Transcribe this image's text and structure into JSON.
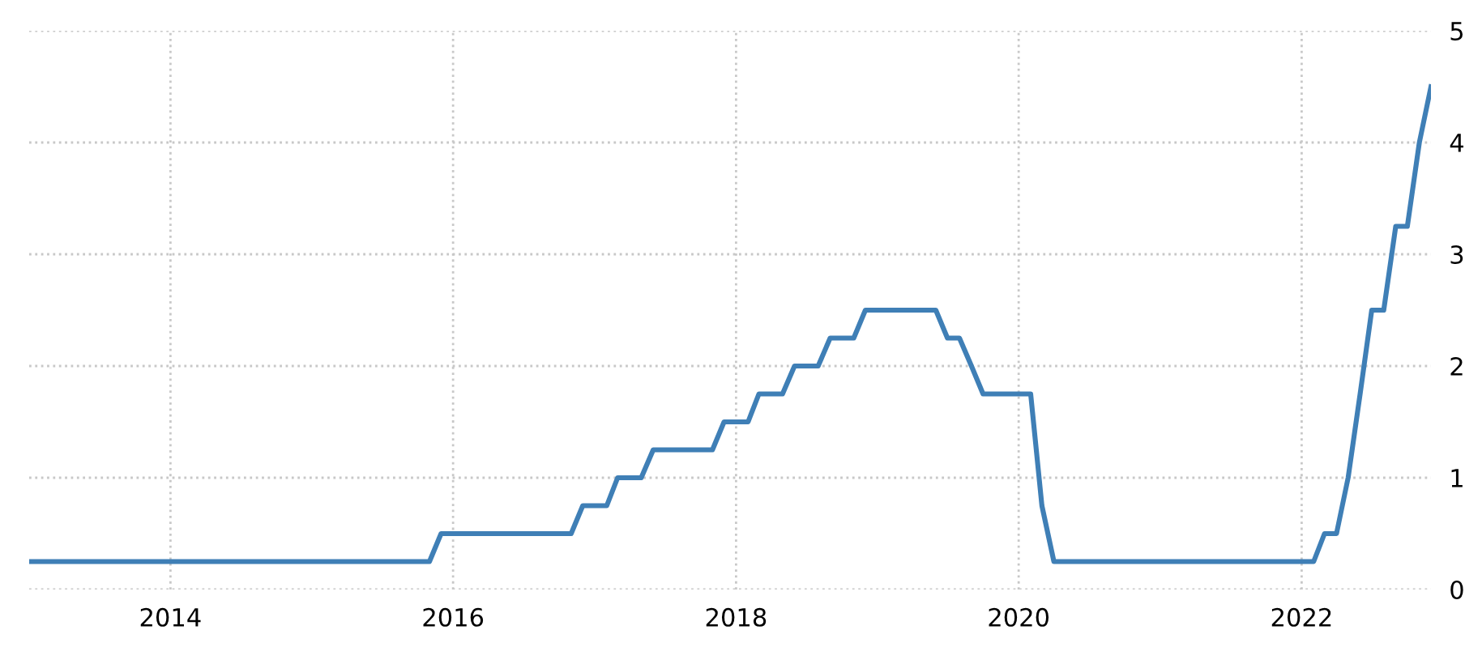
{
  "chart_data": {
    "type": "line",
    "x": [
      "2013-01",
      "2015-11",
      "2015-12",
      "2016-11",
      "2016-12",
      "2017-02",
      "2017-03",
      "2017-05",
      "2017-06",
      "2017-11",
      "2017-12",
      "2018-02",
      "2018-03",
      "2018-05",
      "2018-06",
      "2018-08",
      "2018-09",
      "2018-11",
      "2018-12",
      "2019-06",
      "2019-07",
      "2019-08",
      "2019-09",
      "2019-10",
      "2020-02",
      "2020-03",
      "2020-04",
      "2022-02",
      "2022-03",
      "2022-04",
      "2022-05",
      "2022-06",
      "2022-07",
      "2022-08",
      "2022-09",
      "2022-10",
      "2022-11",
      "2022-12"
    ],
    "series": [
      {
        "color": "#3f7fb6",
        "values": [
          0.25,
          0.25,
          0.5,
          0.5,
          0.75,
          0.75,
          1.0,
          1.0,
          1.25,
          1.25,
          1.5,
          1.5,
          1.75,
          1.75,
          2.0,
          2.0,
          2.25,
          2.25,
          2.5,
          2.5,
          2.25,
          2.25,
          2.0,
          1.75,
          1.75,
          0.75,
          0.25,
          0.25,
          0.5,
          0.5,
          1.0,
          1.75,
          2.5,
          2.5,
          3.25,
          3.25,
          4.0,
          4.5
        ]
      }
    ],
    "xlim": [
      "2013-01",
      "2022-12"
    ],
    "xticks": [
      "2014",
      "2016",
      "2018",
      "2020",
      "2022"
    ],
    "ylim": [
      0,
      5
    ],
    "yticks": [
      0,
      1,
      2,
      3,
      4,
      5
    ],
    "grid": true,
    "line_style": "solid"
  }
}
